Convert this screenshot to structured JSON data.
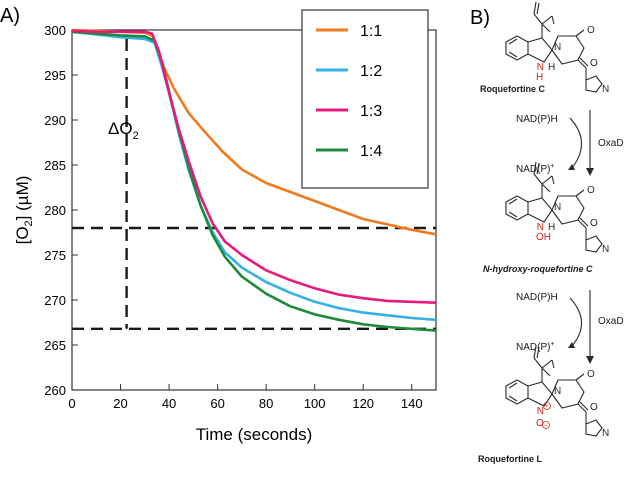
{
  "panel_a_label": "A)",
  "panel_b_label": "B)",
  "colors": {
    "s1": "#f07a1e",
    "s2": "#33b1e6",
    "s3": "#e6197c",
    "s4": "#1d8a3c",
    "axis": "#333333",
    "guide": "#1a1a1a",
    "scheme": "#2a2a2a",
    "red": "#d42a1e",
    "label_red": "#cc2222"
  },
  "annotation": {
    "delta": "ΔO",
    "sub": "2"
  },
  "chart_data": {
    "type": "line",
    "title": "",
    "xlabel": "Time (seconds)",
    "ylabel_main": "[O",
    "ylabel_sub": "2",
    "ylabel_tail": "] (µM)",
    "xlim": [
      0,
      150
    ],
    "ylim": [
      260,
      300
    ],
    "xticks": [
      "0",
      "20",
      "40",
      "60",
      "80",
      "100",
      "120",
      "140"
    ],
    "yticks": [
      "260",
      "265",
      "270",
      "275",
      "280",
      "285",
      "290",
      "295",
      "300"
    ],
    "legend_position": "top-right",
    "guides": {
      "upper_y": 278,
      "lower_y": 266.8,
      "vertical_x": 22.5
    },
    "series": [
      {
        "name": "1:1",
        "points": [
          [
            0,
            300
          ],
          [
            10,
            299.9
          ],
          [
            20,
            299.8
          ],
          [
            30,
            299.7
          ],
          [
            33,
            299.4
          ],
          [
            35,
            298
          ],
          [
            38,
            295.8
          ],
          [
            42,
            293.5
          ],
          [
            48,
            290.8
          ],
          [
            55,
            288.6
          ],
          [
            62,
            286.5
          ],
          [
            70,
            284.5
          ],
          [
            80,
            283
          ],
          [
            90,
            282
          ],
          [
            100,
            281
          ],
          [
            110,
            280
          ],
          [
            120,
            279
          ],
          [
            130,
            278.4
          ],
          [
            140,
            277.8
          ],
          [
            150,
            277.3
          ]
        ]
      },
      {
        "name": "1:2",
        "points": [
          [
            0,
            299.8
          ],
          [
            10,
            299.5
          ],
          [
            20,
            299.2
          ],
          [
            30,
            299
          ],
          [
            34,
            298.6
          ],
          [
            37,
            296
          ],
          [
            40,
            293
          ],
          [
            44,
            288.5
          ],
          [
            48,
            284.5
          ],
          [
            53,
            280.5
          ],
          [
            58,
            277.5
          ],
          [
            63,
            275.3
          ],
          [
            70,
            273.6
          ],
          [
            80,
            272
          ],
          [
            90,
            270.8
          ],
          [
            100,
            269.8
          ],
          [
            110,
            269.1
          ],
          [
            120,
            268.6
          ],
          [
            130,
            268.3
          ],
          [
            140,
            268
          ],
          [
            150,
            267.8
          ]
        ]
      },
      {
        "name": "1:3",
        "points": [
          [
            0,
            299.9
          ],
          [
            10,
            299.8
          ],
          [
            20,
            299.8
          ],
          [
            30,
            299.8
          ],
          [
            33,
            299.6
          ],
          [
            36,
            297.5
          ],
          [
            40,
            293
          ],
          [
            44,
            289
          ],
          [
            48,
            285.5
          ],
          [
            53,
            281.5
          ],
          [
            58,
            278.5
          ],
          [
            63,
            276.5
          ],
          [
            70,
            275
          ],
          [
            80,
            273.3
          ],
          [
            90,
            272.2
          ],
          [
            100,
            271.3
          ],
          [
            110,
            270.6
          ],
          [
            120,
            270.2
          ],
          [
            130,
            269.9
          ],
          [
            140,
            269.8
          ],
          [
            150,
            269.7
          ]
        ]
      },
      {
        "name": "1:4",
        "points": [
          [
            0,
            299.8
          ],
          [
            10,
            299.6
          ],
          [
            20,
            299.4
          ],
          [
            30,
            299.3
          ],
          [
            34,
            298.8
          ],
          [
            37,
            296.5
          ],
          [
            40,
            293.2
          ],
          [
            44,
            288.8
          ],
          [
            48,
            284.8
          ],
          [
            53,
            280.5
          ],
          [
            58,
            277.2
          ],
          [
            63,
            274.8
          ],
          [
            70,
            272.6
          ],
          [
            80,
            270.7
          ],
          [
            90,
            269.3
          ],
          [
            100,
            268.4
          ],
          [
            110,
            267.8
          ],
          [
            120,
            267.3
          ],
          [
            130,
            267
          ],
          [
            140,
            266.8
          ],
          [
            150,
            266.6
          ]
        ]
      }
    ]
  },
  "scheme": {
    "compounds": [
      {
        "name": "Roquefortine C",
        "nsub": "N",
        "hsub": "H"
      },
      {
        "name": "N-hydroxy-roquefortine C",
        "nsub": "N",
        "hsub": "OH"
      },
      {
        "name": "Roquefortine L",
        "nsub": "N",
        "hsub": "O"
      }
    ],
    "steps": [
      {
        "in": "NAD(P)H",
        "out": "NAD(P)",
        "plus": "+",
        "enzyme": "OxaD"
      },
      {
        "in": "NAD(P)H",
        "out": "NAD(P)",
        "plus": "+",
        "enzyme": "OxaD"
      }
    ],
    "atoms": {
      "n": "N",
      "h": "H",
      "o": "O"
    },
    "charges": {
      "pos": "+",
      "neg": "−"
    }
  }
}
